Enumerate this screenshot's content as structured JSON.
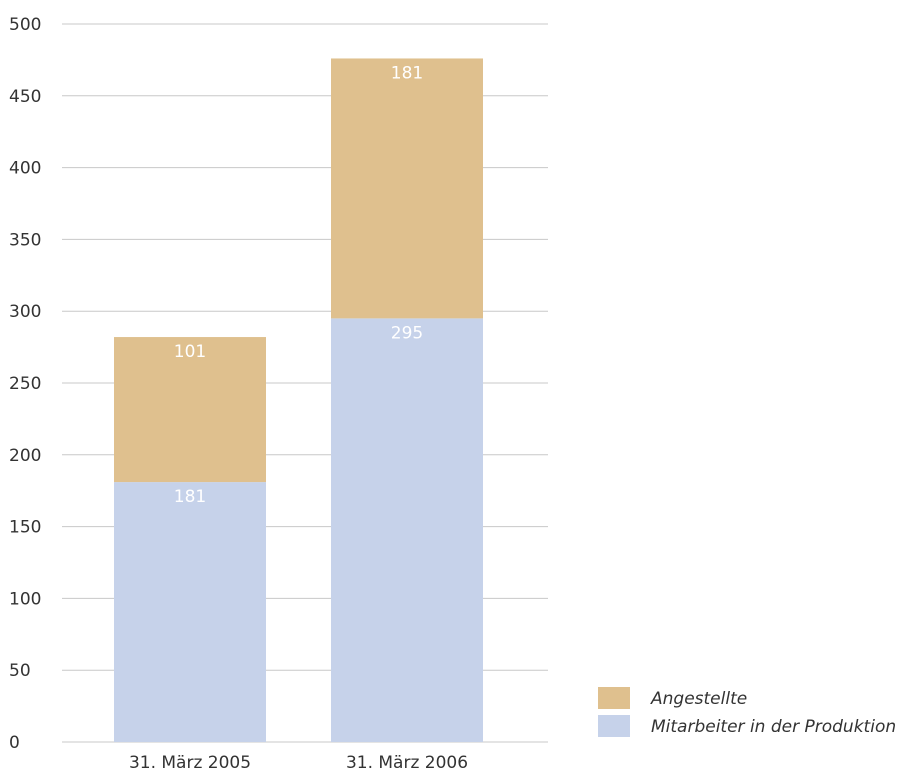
{
  "chart_data": {
    "type": "bar",
    "stacked": true,
    "categories": [
      "31. März 2005",
      "31. März 2006"
    ],
    "series": [
      {
        "name": "Mitarbeiter in der Produktion",
        "values": [
          181,
          295
        ],
        "color": "#c6d2ea"
      },
      {
        "name": "Angestellte",
        "values": [
          101,
          181
        ],
        "color": "#dfc08e"
      }
    ],
    "ylim": [
      0,
      500
    ],
    "yticks": [
      "0",
      "50",
      "100",
      "150",
      "200",
      "250",
      "300",
      "350",
      "400",
      "450",
      "500"
    ],
    "grid": true,
    "legend_position": "bottom-right",
    "legend_order": [
      "Angestellte",
      "Mitarbeiter in der Produktion"
    ],
    "title": "",
    "xlabel": "",
    "ylabel": ""
  }
}
